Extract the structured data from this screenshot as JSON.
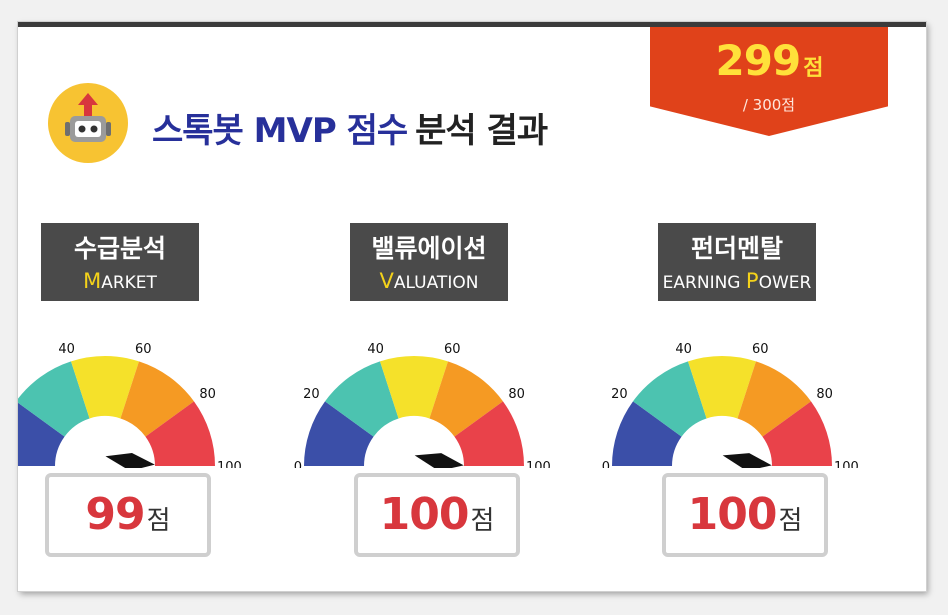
{
  "total_score": {
    "value": "299",
    "unit": "점",
    "max": "/ 300점"
  },
  "title": {
    "highlight": "스톡봇 MVP 점수",
    "rest": "분석 결과"
  },
  "colors": {
    "ribbon": "#e0421a",
    "score_text": "#ffe13a",
    "title_blue": "#27309a",
    "result_red": "#d8373d",
    "gauge_segments": [
      "#3b4fa8",
      "#4cc3b0",
      "#f5e12a",
      "#f59a23",
      "#e9424a"
    ]
  },
  "icons": {
    "logo": "robot-icon"
  },
  "gauges": [
    {
      "label_ko": "수급분석",
      "label_en_parts": [
        {
          "text": "M",
          "hl": true
        },
        {
          "text": "ARKET",
          "hl": false
        }
      ],
      "score": "99",
      "unit": "점",
      "value": 99
    },
    {
      "label_ko": "밸류에이션",
      "label_en_parts": [
        {
          "text": "V",
          "hl": true
        },
        {
          "text": "ALUATION",
          "hl": false
        }
      ],
      "score": "100",
      "unit": "점",
      "value": 100
    },
    {
      "label_ko": "펀더멘탈",
      "label_en_parts": [
        {
          "text": "EARNING ",
          "hl": false
        },
        {
          "text": "P",
          "hl": true
        },
        {
          "text": "OWER",
          "hl": false
        }
      ],
      "score": "100",
      "unit": "점",
      "value": 100
    }
  ],
  "gauge_ticks": [
    "0",
    "20",
    "40",
    "60",
    "80",
    "100"
  ]
}
